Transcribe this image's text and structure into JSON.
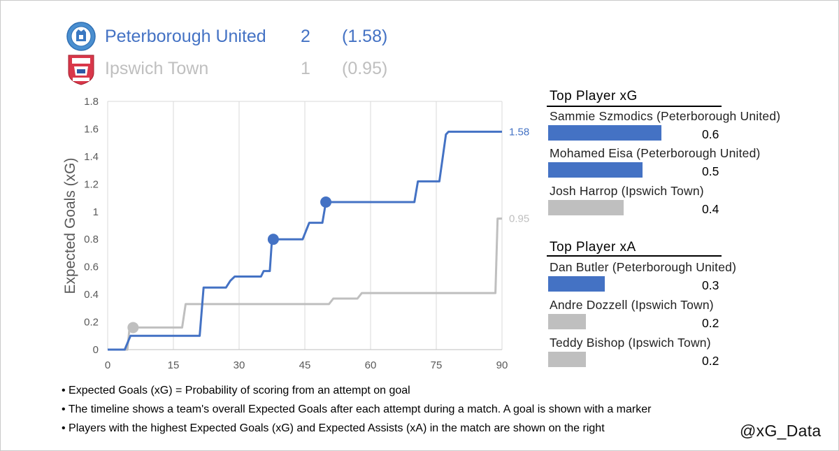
{
  "header": {
    "teams": [
      {
        "name": "Peterborough United",
        "goals": "2",
        "xg": "(1.58)",
        "color": "#4472c4"
      },
      {
        "name": "Ipswich Town",
        "goals": "1",
        "xg": "(0.95)",
        "color": "#bfbfbf"
      }
    ]
  },
  "chart_data": {
    "type": "line",
    "ylabel": "Expected Goals (xG)",
    "xlabel": "",
    "xlim": [
      0,
      90
    ],
    "ylim": [
      0,
      1.8
    ],
    "xticks": [
      "0",
      "15",
      "30",
      "45",
      "60",
      "75",
      "90"
    ],
    "yticks": [
      "0",
      "0.2",
      "0.4",
      "0.6",
      "0.8",
      "1",
      "1.2",
      "1.4",
      "1.6",
      "1.8"
    ],
    "grid": "vertical",
    "series": [
      {
        "name": "Peterborough United",
        "color": "#4472c4",
        "end_label": "1.58",
        "points": [
          [
            0,
            0
          ],
          [
            3.9,
            0
          ],
          [
            5.2,
            0.1
          ],
          [
            21,
            0.1
          ],
          [
            21.9,
            0.45
          ],
          [
            27,
            0.45
          ],
          [
            28,
            0.5
          ],
          [
            29,
            0.53
          ],
          [
            35,
            0.53
          ],
          [
            35.6,
            0.57
          ],
          [
            37,
            0.57
          ],
          [
            37.5,
            0.8
          ],
          [
            44.5,
            0.8
          ],
          [
            46,
            0.92
          ],
          [
            49,
            0.92
          ],
          [
            49.8,
            1.07
          ],
          [
            70,
            1.07
          ],
          [
            70.8,
            1.22
          ],
          [
            75.7,
            1.22
          ],
          [
            77.2,
            1.56
          ],
          [
            77.8,
            1.58
          ],
          [
            90,
            1.58
          ]
        ],
        "goals": [
          [
            37.8,
            0.8
          ],
          [
            49.8,
            1.07
          ]
        ]
      },
      {
        "name": "Ipswich Town",
        "color": "#bfbfbf",
        "end_label": "0.95",
        "points": [
          [
            0,
            0
          ],
          [
            4.5,
            0
          ],
          [
            5,
            0.16
          ],
          [
            17,
            0.16
          ],
          [
            17.8,
            0.33
          ],
          [
            50.5,
            0.33
          ],
          [
            51.5,
            0.37
          ],
          [
            57,
            0.37
          ],
          [
            58,
            0.41
          ],
          [
            88.5,
            0.41
          ],
          [
            89,
            0.95
          ],
          [
            90,
            0.95
          ]
        ],
        "goals": [
          [
            5.8,
            0.16
          ]
        ]
      }
    ]
  },
  "top_xg": {
    "title": "Top Player xG",
    "players": [
      {
        "name": "Sammie Szmodics (Peterborough United)",
        "value": "0.6",
        "fraction": 0.6,
        "color": "#4472c4"
      },
      {
        "name": "Mohamed Eisa (Peterborough United)",
        "value": "0.5",
        "fraction": 0.5,
        "color": "#4472c4"
      },
      {
        "name": "Josh Harrop (Ipswich Town)",
        "value": "0.4",
        "fraction": 0.4,
        "color": "#bfbfbf"
      }
    ]
  },
  "top_xa": {
    "title": "Top Player xA",
    "players": [
      {
        "name": "Dan Butler (Peterborough United)",
        "value": "0.3",
        "fraction": 0.3,
        "color": "#4472c4"
      },
      {
        "name": "Andre Dozzell (Ipswich Town)",
        "value": "0.2",
        "fraction": 0.2,
        "color": "#bfbfbf"
      },
      {
        "name": "Teddy Bishop (Ipswich Town)",
        "value": "0.2",
        "fraction": 0.2,
        "color": "#bfbfbf"
      }
    ]
  },
  "notes": [
    "• Expected Goals (xG) = Probability of scoring from an attempt on goal",
    "• The timeline shows a team's overall Expected Goals after each attempt during a match. A goal is shown with a marker",
    "• Players with the highest Expected Goals (xG) and Expected Assists (xA) in the match are shown on the right"
  ],
  "credit": "@xG_Data"
}
